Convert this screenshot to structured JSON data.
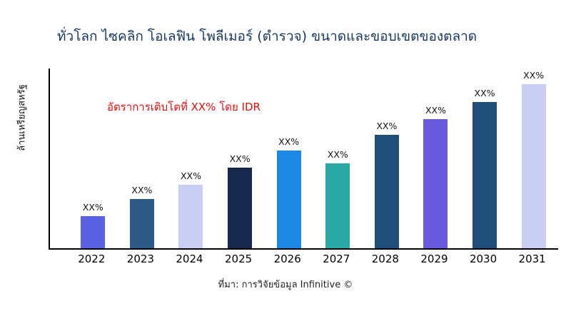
{
  "title": "ทั่วโลก ไซคลิก โอเลฟิน โพลีเมอร์ (ตำรวจ) ขนาดและขอบเขตของตลาด",
  "annotation": "อัตราการเติบโตที่ XX% โดย IDR",
  "y_axis_label": "ล้านเหรียญสหรัฐ",
  "source": "ที่มา: การวิจัยข้อมูล Infinitive ©",
  "colors": {
    "title": "#17365D",
    "annotation": "#E01010",
    "axis": "#000000",
    "background": "#FFFFFF"
  },
  "chart_data": {
    "type": "bar",
    "title": "ทั่วโลก ไซคลิก โอเลฟิน โพลีเมอร์ (ตำรวจ) ขนาดและขอบเขตของตลาด",
    "xlabel": "",
    "ylabel": "ล้านเหรียญสหรัฐ",
    "categories": [
      "2022",
      "2023",
      "2024",
      "2025",
      "2026",
      "2027",
      "2028",
      "2029",
      "2030",
      "2031"
    ],
    "values": [
      45,
      68,
      88,
      112,
      136,
      118,
      158,
      180,
      203,
      228
    ],
    "value_labels": [
      "XX%",
      "XX%",
      "XX%",
      "XX%",
      "XX%",
      "XX%",
      "XX%",
      "XX%",
      "XX%",
      "XX%"
    ],
    "bar_colors": [
      "#5A61E3",
      "#2E5A87",
      "#C9CEF4",
      "#16294C",
      "#1E88E5",
      "#2AA8A3",
      "#1F4E79",
      "#6A5AE0",
      "#1F4E79",
      "#C9CEF4"
    ],
    "ylim": [
      0,
      250
    ],
    "grid": false,
    "legend": false,
    "annotation": "อัตราการเติบโตที่ XX% โดย IDR"
  }
}
